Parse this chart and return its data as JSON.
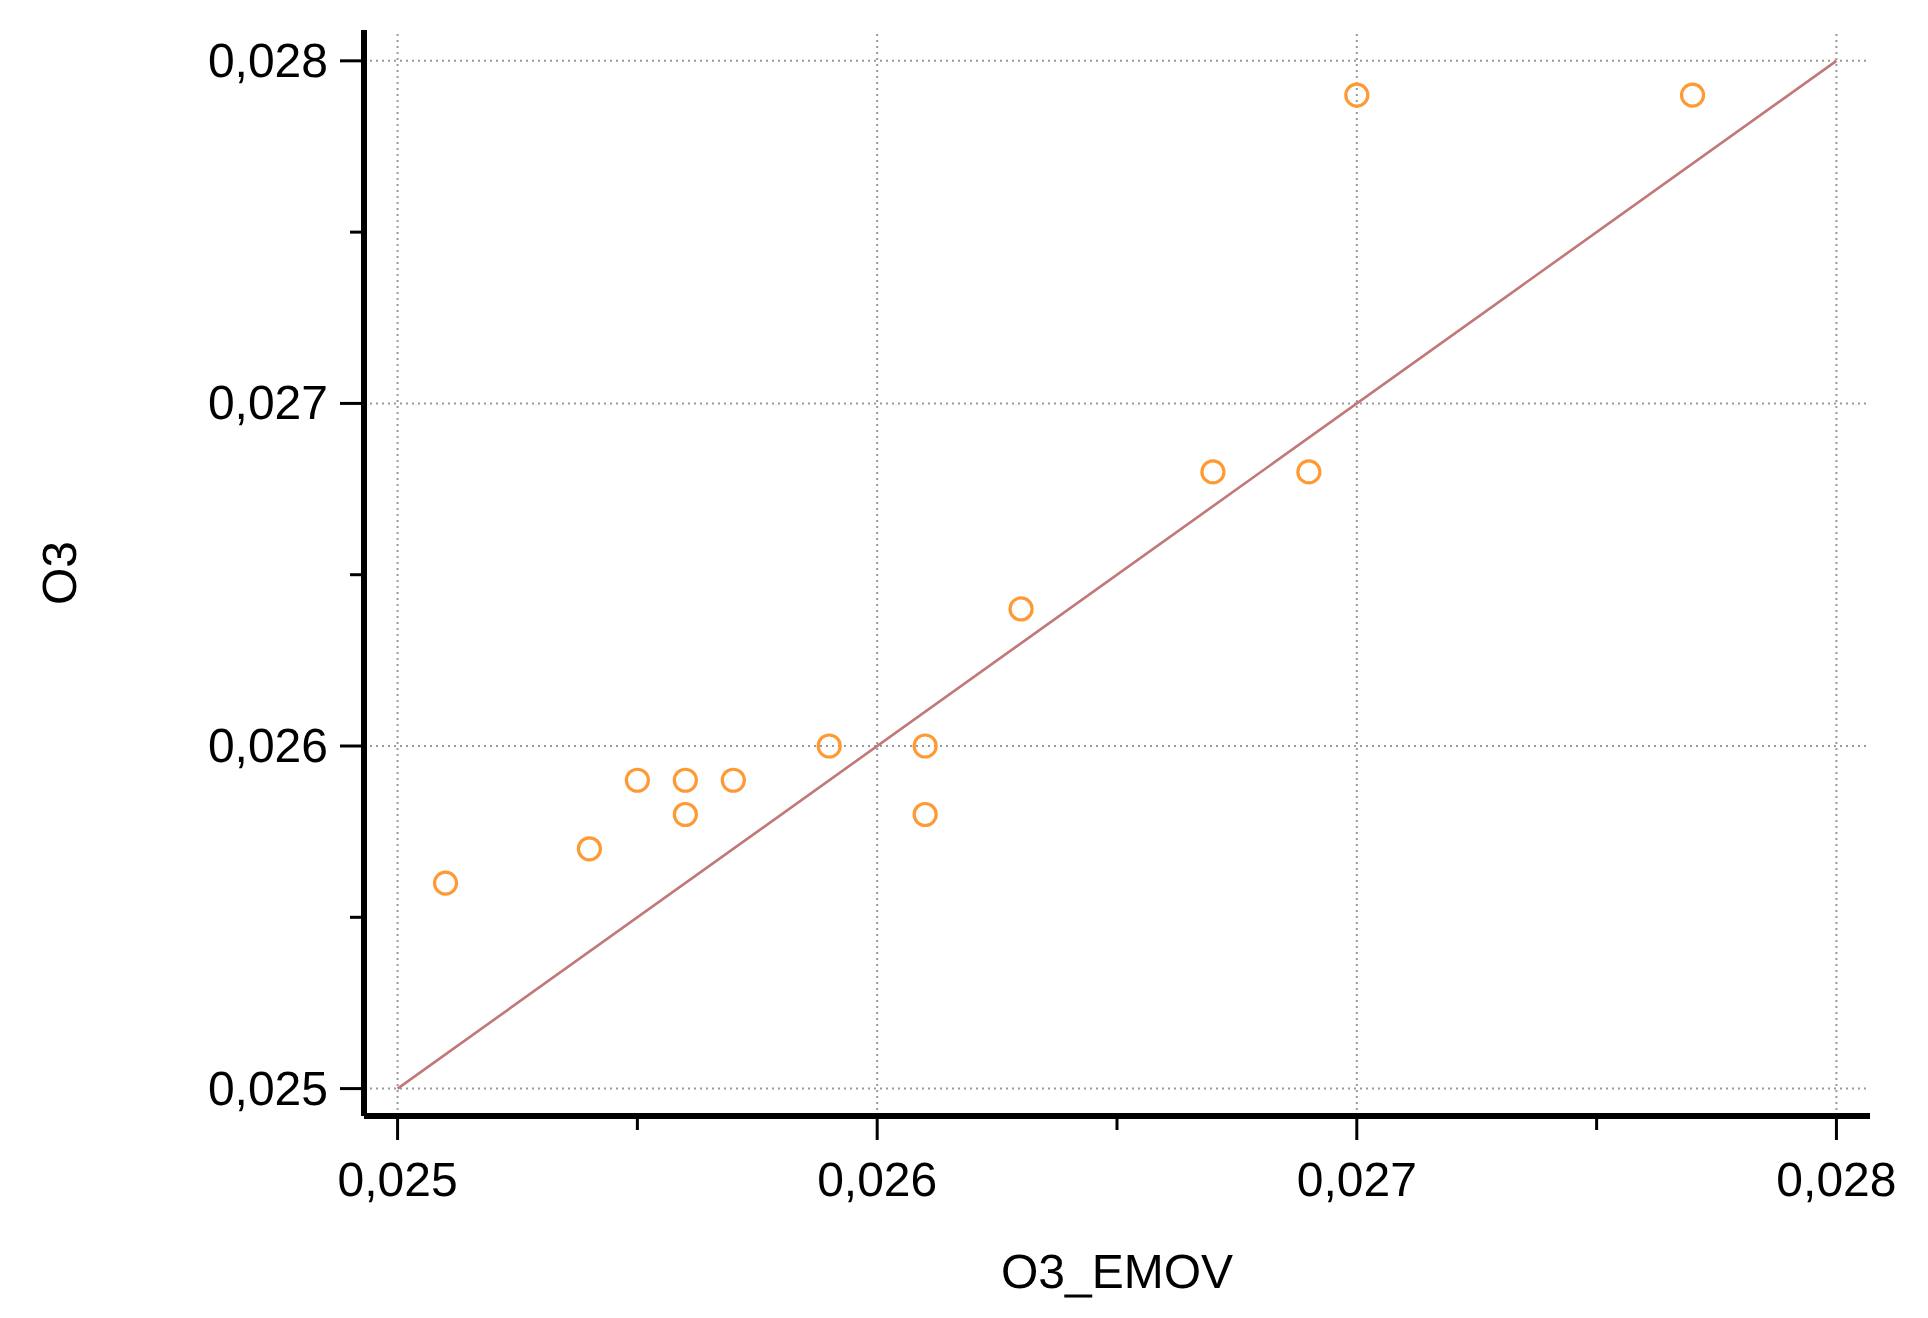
{
  "chart_data": {
    "type": "scatter",
    "xlabel": "O3_EMOV",
    "ylabel": "O3",
    "xlim": [
      0.02493,
      0.02807
    ],
    "ylim": [
      0.02492,
      0.02809
    ],
    "xticks": [
      {
        "value": 0.025,
        "label": "0,025"
      },
      {
        "value": 0.0255,
        "label": null
      },
      {
        "value": 0.026,
        "label": "0,026"
      },
      {
        "value": 0.0265,
        "label": null
      },
      {
        "value": 0.027,
        "label": "0,027"
      },
      {
        "value": 0.0275,
        "label": null
      },
      {
        "value": 0.028,
        "label": "0,028"
      }
    ],
    "yticks": [
      {
        "value": 0.025,
        "label": "0,025"
      },
      {
        "value": 0.0255,
        "label": null
      },
      {
        "value": 0.026,
        "label": "0,026"
      },
      {
        "value": 0.0265,
        "label": null
      },
      {
        "value": 0.027,
        "label": "0,027"
      },
      {
        "value": 0.0275,
        "label": null
      },
      {
        "value": 0.028,
        "label": "0,028"
      }
    ],
    "grid": true,
    "marker": "circle",
    "series": [
      {
        "color": "#ff9933",
        "x": [
          0.0251,
          0.0254,
          0.0255,
          0.0256,
          0.0256,
          0.0257,
          0.0259,
          0.0261,
          0.0261,
          0.0263,
          0.0267,
          0.0269,
          0.027,
          0.0277
        ],
        "values": [
          0.0256,
          0.0257,
          0.0259,
          0.0259,
          0.0258,
          0.0259,
          0.026,
          0.026,
          0.0258,
          0.0264,
          0.0268,
          0.0268,
          0.0279,
          0.0279
        ]
      },
      {
        "type": "line",
        "color": "#c07878",
        "x": [
          0.025,
          0.028
        ],
        "values": [
          0.025,
          0.028
        ],
        "marker": "none",
        "line_style": "solid"
      }
    ]
  }
}
